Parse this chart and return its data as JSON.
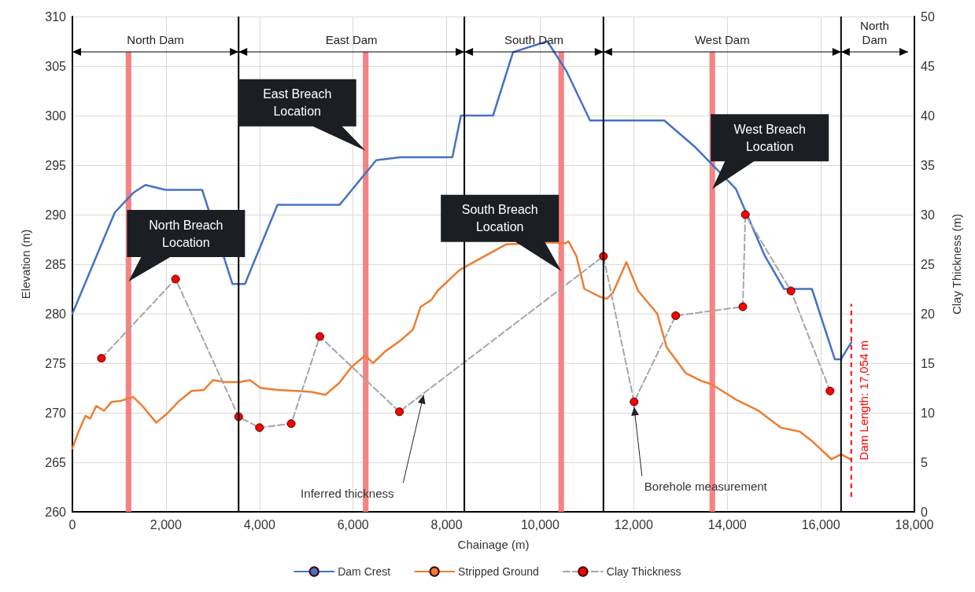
{
  "chart_data": {
    "type": "line",
    "xlabel": "Chainage (m)",
    "ylabel": "Elevation (m)",
    "y2label": "Clay Thickness (m)",
    "xlim": [
      0,
      18000
    ],
    "xticks": [
      0,
      {
        "value": 2000,
        "label": "2,000"
      },
      {
        "value": 4000,
        "label": "4,000"
      },
      {
        "value": 6000,
        "label": "6,000"
      },
      {
        "value": 8000,
        "label": "8,000"
      },
      {
        "value": 10000,
        "label": "10,000"
      },
      {
        "value": 12000,
        "label": "12,000"
      },
      {
        "value": 14000,
        "label": "14,000"
      },
      {
        "value": 16000,
        "label": "16,000"
      },
      {
        "value": 18000,
        "label": "18,000"
      }
    ],
    "ylim": [
      260,
      310
    ],
    "yticks": [
      260,
      265,
      270,
      275,
      280,
      285,
      290,
      295,
      300,
      305,
      310
    ],
    "y2lim": [
      0,
      50
    ],
    "y2ticks": [
      0,
      5,
      10,
      15,
      20,
      25,
      30,
      35,
      40,
      45,
      50
    ],
    "grid": true,
    "legend": "bottom",
    "series": [
      {
        "name": "Dam Crest",
        "color": "#4472c4",
        "marker": "none",
        "line_style": "solid",
        "x": [
          0,
          904,
          1300,
          1560,
          1992,
          2774,
          3422,
          3688,
          4385,
          5714,
          6495,
          7010,
          8123,
          8306,
          8993,
          9420,
          10153,
          10560,
          11066,
          12653,
          13316,
          14183,
          14807,
          15213,
          15809,
          16298,
          16429,
          16650
        ],
        "values": [
          280,
          290.2,
          292.2,
          293.0,
          292.5,
          292.5,
          283.0,
          283.0,
          291.0,
          291.0,
          295.5,
          295.8,
          295.8,
          300.0,
          300.0,
          306.4,
          307.5,
          304.5,
          299.5,
          299.5,
          296.8,
          292.6,
          285.8,
          282.5,
          282.5,
          275.4,
          275.4,
          277.1
        ]
      },
      {
        "name": "Stripped Ground",
        "color": "#ed7d31",
        "marker": "none",
        "line_style": "solid",
        "x": [
          0,
          115,
          280,
          378,
          510,
          674,
          838,
          1035,
          1299,
          1495,
          1791,
          2022,
          2284,
          2548,
          2810,
          3008,
          3270,
          3566,
          3796,
          4026,
          4388,
          4782,
          5110,
          5407,
          5702,
          5965,
          6262,
          6425,
          6688,
          7017,
          7281,
          7445,
          7675,
          7806,
          8272,
          8771,
          9269,
          10267,
          10538,
          10606,
          10776,
          10945,
          11284,
          11418,
          11554,
          11843,
          12096,
          12502,
          12704,
          13111,
          13450,
          13653,
          13857,
          14196,
          14669,
          15145,
          15550,
          15822,
          16229,
          16432,
          16636
        ],
        "values": [
          266.4,
          267.9,
          269.7,
          269.4,
          270.7,
          270.2,
          271.1,
          271.2,
          271.6,
          270.7,
          269.0,
          269.9,
          271.2,
          272.2,
          272.3,
          273.3,
          273.1,
          273.1,
          273.3,
          272.5,
          272.3,
          272.2,
          272.1,
          271.8,
          273.0,
          274.6,
          275.8,
          275.0,
          276.2,
          277.3,
          278.4,
          280.7,
          281.4,
          282.3,
          284.4,
          285.7,
          287.0,
          287.2,
          287.1,
          287.3,
          285.8,
          282.5,
          281.7,
          281.5,
          282.1,
          285.2,
          282.3,
          280.0,
          276.6,
          274.0,
          273.2,
          272.9,
          272.3,
          271.3,
          270.2,
          268.5,
          268.1,
          267.1,
          265.3,
          265.8,
          265.3
        ]
      },
      {
        "name": "Clay Thickness",
        "color": "#a5a5a5",
        "axis": "y2",
        "marker": "circle",
        "line_style": "dashed",
        "x": [
          621,
          2206,
          3553,
          3999,
          4678,
          5289,
          6991,
          11352,
          12008,
          12897,
          14332,
          14386,
          15361,
          16196
        ],
        "values": [
          15.5,
          23.5,
          9.6,
          8.5,
          8.9,
          17.7,
          10.1,
          25.8,
          11.1,
          19.8,
          20.7,
          30.0,
          22.3,
          12.2
        ],
        "colors": [
          "#ff0000",
          "#ff0000",
          "#ff0000",
          "#ff0000",
          "#ff0000",
          "#ff0000",
          "#ff0000",
          "#ff0000",
          "#ff0000",
          "#ff0000",
          "#ff0000",
          "#ff0000",
          "#ff0000",
          "#ff0000"
        ]
      }
    ],
    "bands": [
      {
        "axis": "x",
        "from": 1140,
        "to": 1260,
        "color": "#f47c7c",
        "label": "North Breach\nLocation"
      },
      {
        "axis": "x",
        "from": 6210,
        "to": 6330,
        "color": "#f47c7c",
        "label": "East Breach\nLocation"
      },
      {
        "axis": "x",
        "from": 10390,
        "to": 10510,
        "color": "#f47c7c",
        "label": "South Breach\nLocation"
      },
      {
        "axis": "x",
        "from": 13620,
        "to": 13740,
        "color": "#f47c7c",
        "label": "West Breach\nLocation"
      }
    ],
    "ref_lines": [
      {
        "axis": "x",
        "value": 3553,
        "color": "#000000",
        "line_style": "solid"
      },
      {
        "axis": "x",
        "value": 8379,
        "color": "#000000",
        "line_style": "solid"
      },
      {
        "axis": "x",
        "value": 11352,
        "color": "#000000",
        "line_style": "solid"
      },
      {
        "axis": "x",
        "value": 16432,
        "color": "#000000",
        "line_style": "solid"
      },
      {
        "axis": "x",
        "value": 16650,
        "color": "#ff0000",
        "line_style": "dashed"
      }
    ],
    "annotations": [
      "North Dam",
      "East Dam",
      "South Dam",
      "West Dam",
      "North\nDam",
      {
        "text": "Inferred thickness",
        "x": 7508,
        "y": 271.8
      },
      {
        "text": "Borehole measurement",
        "x": 12008,
        "y": 270.6
      },
      "Dam Length: 17,054 m"
    ]
  }
}
